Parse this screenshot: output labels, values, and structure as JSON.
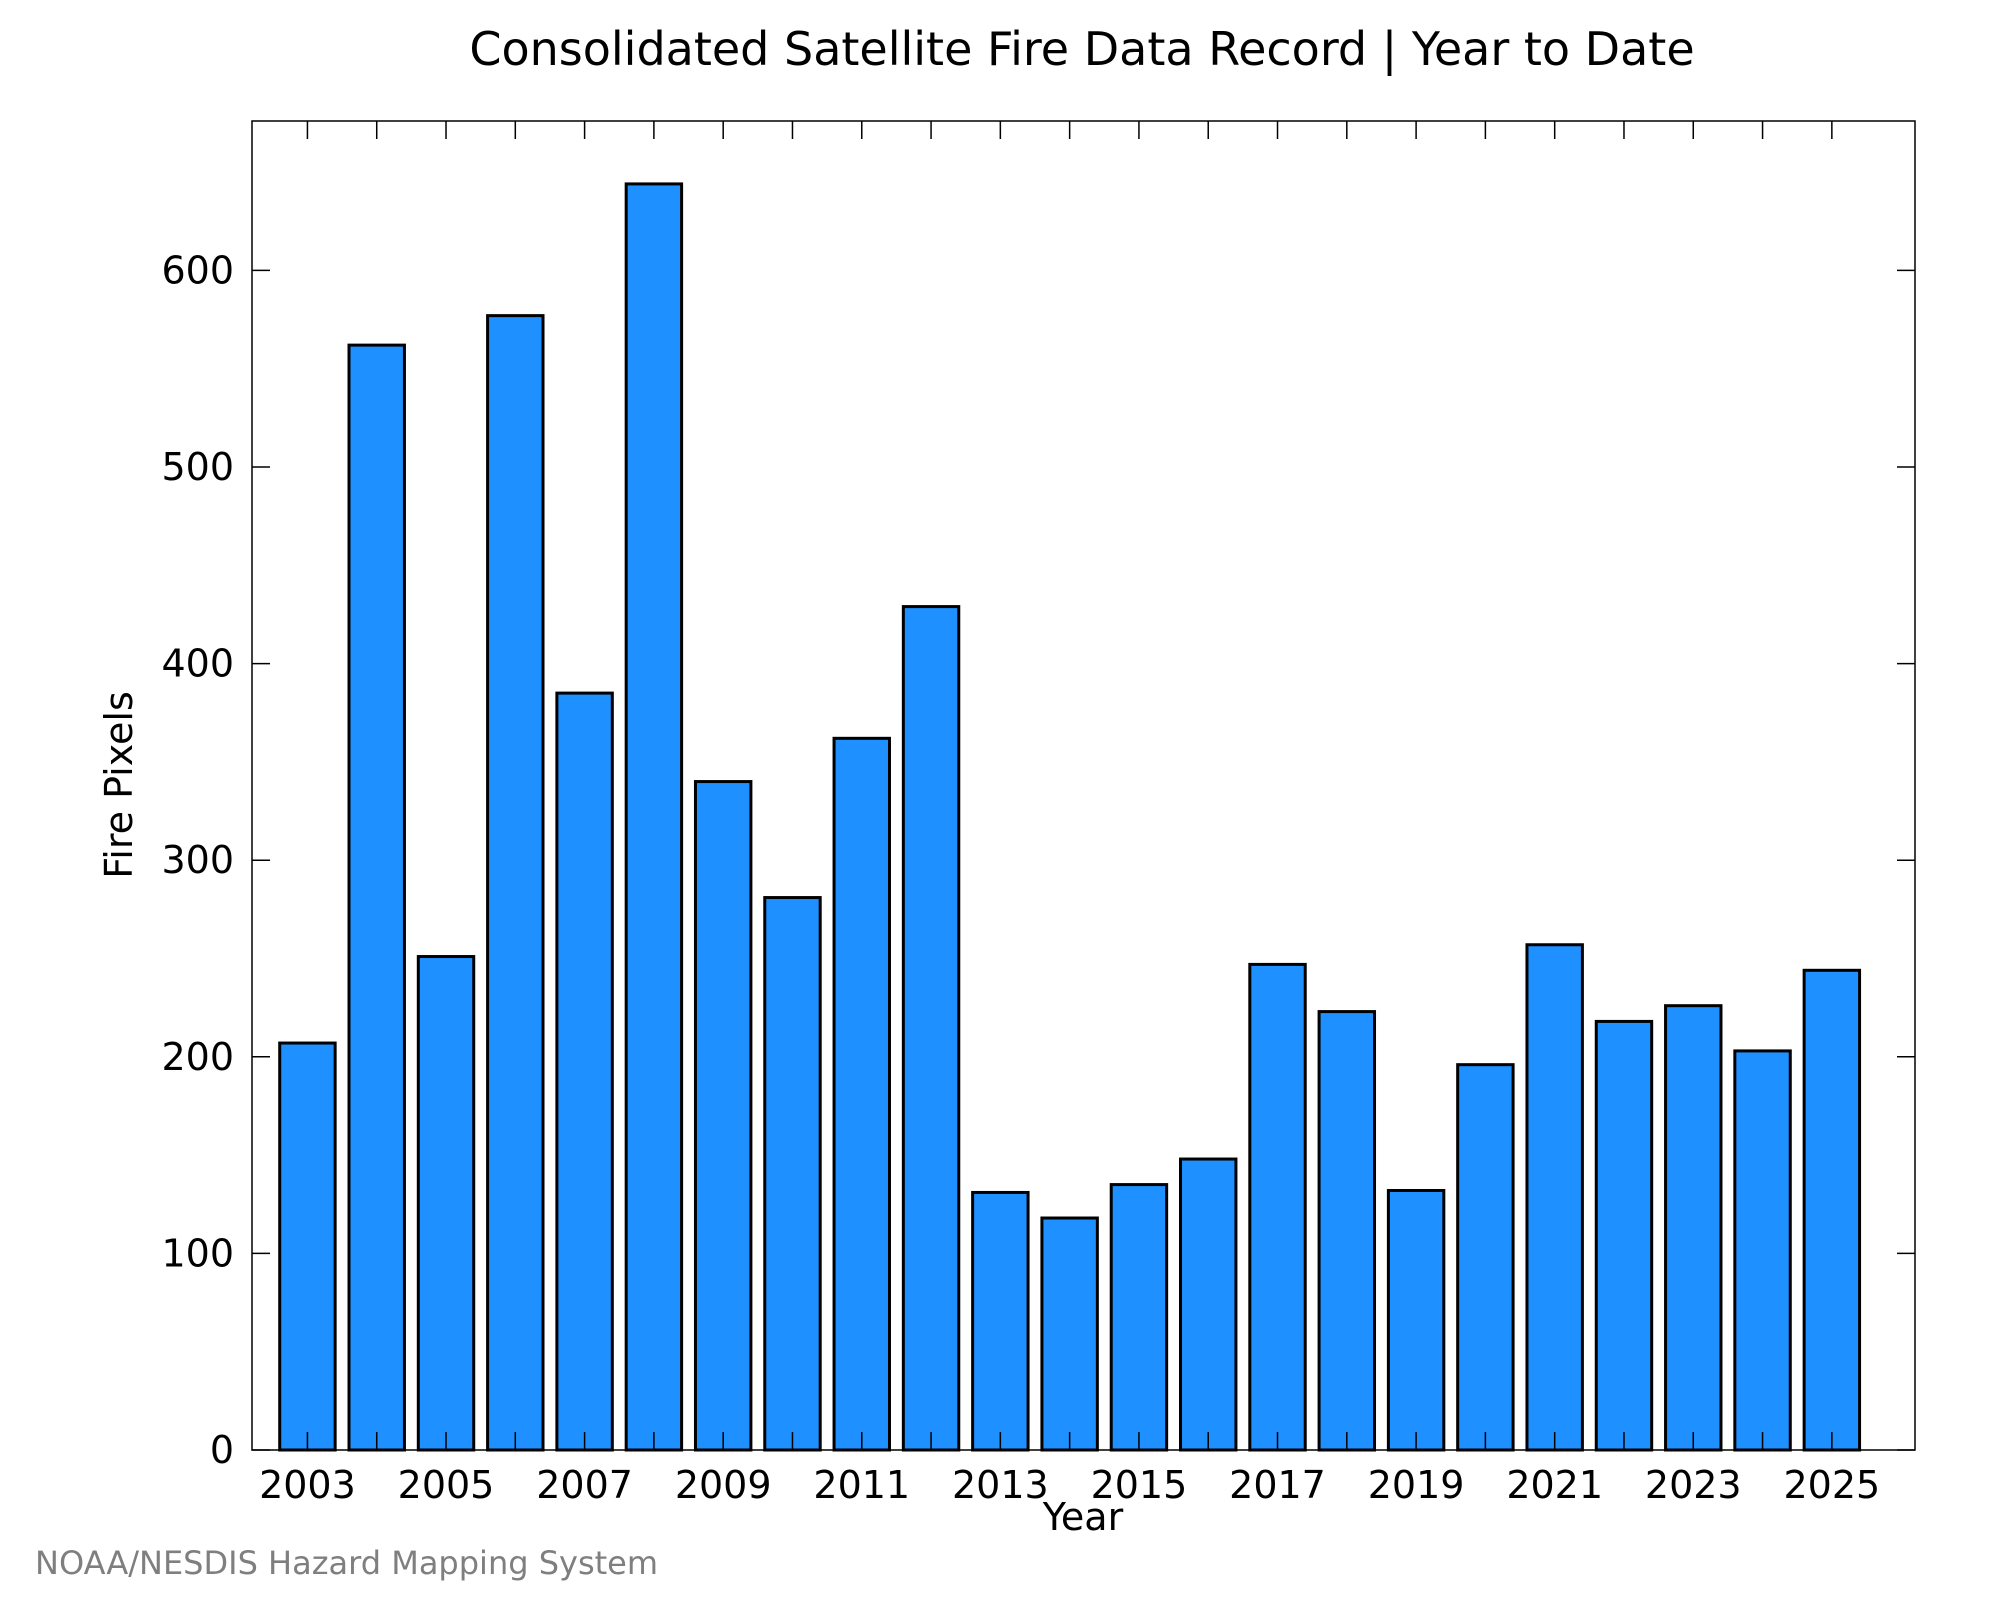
{
  "chart_data": {
    "type": "bar",
    "title": "Consolidated Satellite Fire Data Record | Year to Date",
    "xlabel": "Year",
    "ylabel": "Fire Pixels",
    "categories": [
      2003,
      2004,
      2005,
      2006,
      2007,
      2008,
      2009,
      2010,
      2011,
      2012,
      2013,
      2014,
      2015,
      2016,
      2017,
      2018,
      2019,
      2020,
      2021,
      2022,
      2023,
      2024,
      2025
    ],
    "values": [
      207,
      562,
      251,
      577,
      385,
      644,
      340,
      281,
      362,
      429,
      131,
      118,
      135,
      148,
      247,
      223,
      132,
      196,
      257,
      218,
      226,
      203,
      244
    ],
    "x_tick_labels": [
      "2003",
      "2005",
      "2007",
      "2009",
      "2011",
      "2013",
      "2015",
      "2017",
      "2019",
      "2021",
      "2023",
      "2025"
    ],
    "y_tick_labels": [
      "0",
      "100",
      "200",
      "300",
      "400",
      "500",
      "600"
    ],
    "ylim": [
      0,
      676
    ],
    "xlim": [
      2002.2,
      2026.2
    ],
    "grid": false,
    "bar_color": "#1E90FF",
    "edge_color": "#000000"
  },
  "footer": {
    "source": "NOAA/NESDIS Hazard Mapping System"
  }
}
